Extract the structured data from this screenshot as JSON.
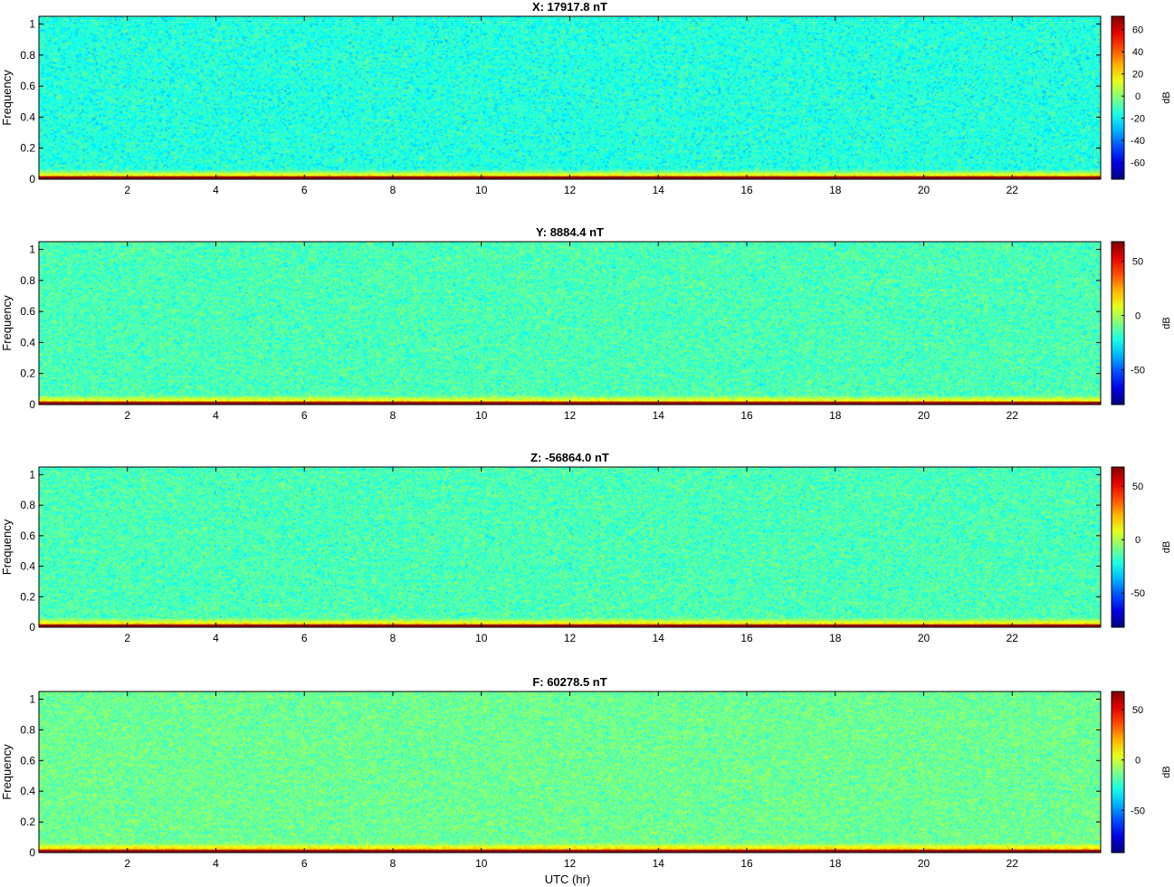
{
  "figure": {
    "xlabel": "UTC (hr)"
  },
  "chart_data": [
    {
      "type": "heatmap",
      "title": "X: 17917.8 nT",
      "xlabel": "",
      "ylabel": "Frequency",
      "xlim": [
        0,
        24
      ],
      "ylim": [
        0,
        1.05
      ],
      "xticks": [
        2,
        4,
        6,
        8,
        10,
        12,
        14,
        16,
        18,
        20,
        22
      ],
      "yticks": [
        0,
        0.2,
        0.4,
        0.6,
        0.8,
        1
      ],
      "colorbar": {
        "label": "dB",
        "range": [
          -75,
          72
        ],
        "ticks": [
          -60,
          -40,
          -20,
          0,
          20,
          40,
          60
        ]
      },
      "colormap": "jet",
      "background_db": -15,
      "low_freq_band_db": 35,
      "dc_line_db": 70
    },
    {
      "type": "heatmap",
      "title": "Y: 8884.4 nT",
      "xlabel": "",
      "ylabel": "Frequency",
      "xlim": [
        0,
        24
      ],
      "ylim": [
        0,
        1.05
      ],
      "xticks": [
        2,
        4,
        6,
        8,
        10,
        12,
        14,
        16,
        18,
        20,
        22
      ],
      "yticks": [
        0,
        0.2,
        0.4,
        0.6,
        0.8,
        1
      ],
      "colorbar": {
        "label": "dB",
        "range": [
          -82,
          68
        ],
        "ticks": [
          -50,
          0,
          50
        ]
      },
      "colormap": "jet",
      "background_db": -15,
      "low_freq_band_db": 25,
      "dc_line_db": 65
    },
    {
      "type": "heatmap",
      "title": "Z: -56864.0 nT",
      "xlabel": "",
      "ylabel": "Frequency",
      "xlim": [
        0,
        24
      ],
      "ylim": [
        0,
        1.05
      ],
      "xticks": [
        2,
        4,
        6,
        8,
        10,
        12,
        14,
        16,
        18,
        20,
        22
      ],
      "yticks": [
        0,
        0.2,
        0.4,
        0.6,
        0.8,
        1
      ],
      "colorbar": {
        "label": "dB",
        "range": [
          -82,
          68
        ],
        "ticks": [
          -50,
          0,
          50
        ]
      },
      "colormap": "jet",
      "background_db": -15,
      "low_freq_band_db": 28,
      "dc_line_db": 65
    },
    {
      "type": "heatmap",
      "title": "F: 60278.5 nT",
      "xlabel": "",
      "ylabel": "Frequency",
      "xlim": [
        0,
        24
      ],
      "ylim": [
        0,
        1.05
      ],
      "xticks": [
        2,
        4,
        6,
        8,
        10,
        12,
        14,
        16,
        18,
        20,
        22
      ],
      "yticks": [
        0,
        0.2,
        0.4,
        0.6,
        0.8,
        1
      ],
      "colorbar": {
        "label": "dB",
        "range": [
          -92,
          68
        ],
        "ticks": [
          -50,
          0,
          50
        ]
      },
      "colormap": "jet",
      "background_db": -15,
      "low_freq_band_db": 30,
      "dc_line_db": 65
    }
  ]
}
